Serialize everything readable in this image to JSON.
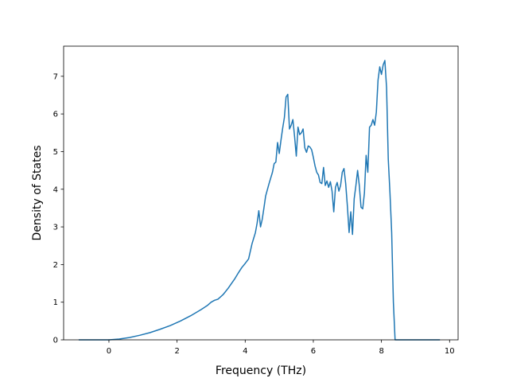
{
  "chart_data": {
    "type": "line",
    "title": "",
    "xlabel": "Frequency (THz)",
    "ylabel": "Density of States",
    "xlim": [
      -1.33,
      10.25
    ],
    "ylim": [
      0,
      7.8
    ],
    "x_ticks": [
      0,
      2,
      4,
      6,
      8,
      10
    ],
    "y_ticks": [
      0,
      1,
      2,
      3,
      4,
      5,
      6,
      7
    ],
    "grid": false,
    "legend": "none",
    "line_color": "#1f77b4",
    "series": [
      {
        "x": [
          -0.87,
          -0.5,
          0.0,
          0.3,
          0.6,
          0.9,
          1.2,
          1.5,
          1.8,
          2.1,
          2.4,
          2.7,
          2.9,
          3.0,
          3.1,
          3.2,
          3.35,
          3.5,
          3.6,
          3.7,
          3.8,
          3.9,
          4.0,
          4.1,
          4.2,
          4.3,
          4.35,
          4.4,
          4.45,
          4.5,
          4.55,
          4.6,
          4.7,
          4.8,
          4.85,
          4.9,
          4.95,
          5.0,
          5.05,
          5.1,
          5.15,
          5.2,
          5.25,
          5.3,
          5.35,
          5.4,
          5.45,
          5.5,
          5.55,
          5.6,
          5.65,
          5.7,
          5.75,
          5.8,
          5.85,
          5.9,
          5.95,
          6.0,
          6.05,
          6.1,
          6.15,
          6.2,
          6.25,
          6.3,
          6.35,
          6.4,
          6.45,
          6.5,
          6.55,
          6.6,
          6.65,
          6.7,
          6.75,
          6.8,
          6.85,
          6.9,
          6.95,
          7.0,
          7.05,
          7.1,
          7.15,
          7.2,
          7.25,
          7.3,
          7.35,
          7.4,
          7.45,
          7.5,
          7.55,
          7.6,
          7.65,
          7.7,
          7.75,
          7.8,
          7.85,
          7.9,
          7.95,
          8.0,
          8.05,
          8.1,
          8.15,
          8.2,
          8.25,
          8.3,
          8.35,
          8.4,
          8.45,
          8.5,
          8.55,
          8.6,
          8.65,
          8.7,
          8.75,
          8.8,
          8.85,
          8.9,
          9.0,
          9.3,
          9.7
        ],
        "y": [
          0,
          0,
          0,
          0.02,
          0.06,
          0.12,
          0.19,
          0.28,
          0.38,
          0.5,
          0.64,
          0.8,
          0.92,
          1.0,
          1.05,
          1.08,
          1.2,
          1.37,
          1.5,
          1.63,
          1.78,
          1.92,
          2.03,
          2.15,
          2.55,
          2.85,
          3.1,
          3.43,
          3.0,
          3.2,
          3.5,
          3.82,
          4.15,
          4.45,
          4.68,
          4.72,
          5.24,
          4.95,
          5.3,
          5.62,
          5.9,
          6.45,
          6.52,
          5.6,
          5.7,
          5.85,
          5.4,
          4.88,
          5.65,
          5.45,
          5.5,
          5.6,
          5.1,
          4.98,
          5.15,
          5.12,
          5.05,
          4.85,
          4.62,
          4.45,
          4.38,
          4.18,
          4.15,
          4.58,
          4.1,
          4.22,
          4.05,
          4.2,
          3.95,
          3.4,
          4.05,
          4.18,
          3.95,
          4.1,
          4.45,
          4.55,
          4.15,
          3.55,
          2.85,
          3.4,
          2.8,
          3.75,
          4.1,
          4.5,
          4.1,
          3.52,
          3.48,
          3.9,
          4.9,
          4.45,
          5.65,
          5.7,
          5.85,
          5.7,
          6.05,
          6.9,
          7.25,
          7.05,
          7.3,
          7.42,
          6.7,
          4.8,
          3.9,
          2.85,
          1.0,
          0,
          0,
          0,
          0,
          0,
          0,
          0,
          0,
          0,
          0,
          0,
          0,
          0,
          0
        ],
        "_note_ignore": ""
      }
    ]
  }
}
